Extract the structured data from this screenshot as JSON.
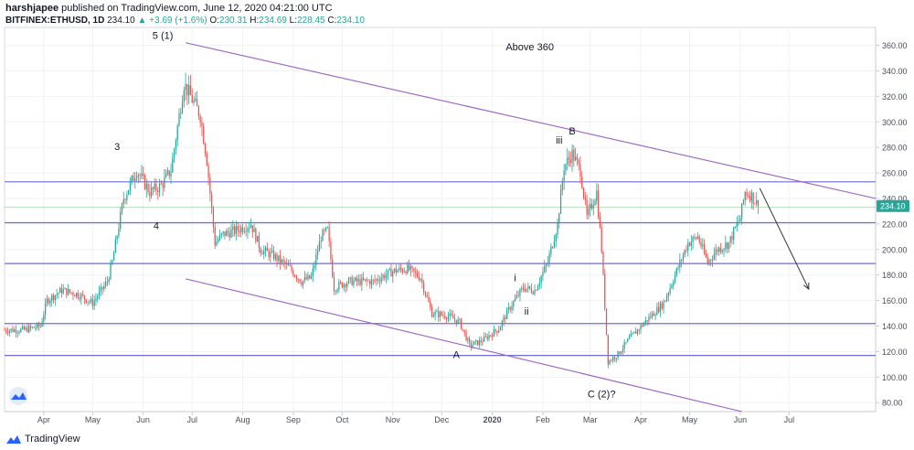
{
  "header": {
    "author": "harshjapee",
    "published_text": "published on TradingView.com, June 12, 2020 04:21:00 UTC",
    "symbol_line": "BITFINEX:ETHUSD, 1D",
    "last": "234.10",
    "change": "▲ +3.69 (+1.6%)",
    "o_label": "O:",
    "o_val": "230.31",
    "h_label": "H:",
    "h_val": "234.69",
    "l_label": "L:",
    "l_val": "228.45",
    "c_label": "C:",
    "c_val": "234.10"
  },
  "footer": {
    "brand": "TradingView"
  },
  "colors": {
    "up": "#26a69a",
    "down": "#ef5350",
    "channel": "#9c5fc1",
    "hline": "#6d6ddb",
    "price_line": "#4caf50",
    "price_badge": "#26a69a"
  },
  "chart_data": {
    "type": "candlestick",
    "x_axis": {
      "labels": [
        "Apr",
        "May",
        "Jun",
        "Jul",
        "Aug",
        "Sep",
        "Oct",
        "Nov",
        "Dec",
        "2020",
        "Feb",
        "Mar",
        "Apr",
        "May",
        "Jun",
        "Jul"
      ],
      "label_dates": [
        "2019-04-01",
        "2019-05-01",
        "2019-06-01",
        "2019-07-01",
        "2019-08-01",
        "2019-09-01",
        "2019-10-01",
        "2019-11-01",
        "2019-12-01",
        "2020-01-01",
        "2020-02-01",
        "2020-03-01",
        "2020-04-01",
        "2020-05-01",
        "2020-06-01",
        "2020-07-01"
      ],
      "range": [
        "2019-03-08",
        "2020-08-23"
      ]
    },
    "y_axis": {
      "ticks": [
        80,
        100,
        120,
        140,
        160,
        180,
        200,
        220,
        240,
        260,
        280,
        300,
        320,
        340,
        360
      ],
      "tick_labels": [
        "80.00",
        "100.00",
        "120.00",
        "140.00",
        "160.00",
        "180.00",
        "200.00",
        "220.00",
        "240.00",
        "260.00",
        "280.00",
        "300.00",
        "320.00",
        "340.00",
        "360.00"
      ],
      "range": [
        73,
        374
      ],
      "position": "right"
    },
    "grid": true,
    "last_price": 234.1,
    "last_price_label": "234.10",
    "price_path": [
      [
        "2019-03-08",
        137
      ],
      [
        "2019-03-20",
        137
      ],
      [
        "2019-03-30",
        140
      ],
      [
        "2019-04-03",
        160
      ],
      [
        "2019-04-12",
        168
      ],
      [
        "2019-04-22",
        165
      ],
      [
        "2019-05-01",
        158
      ],
      [
        "2019-05-10",
        175
      ],
      [
        "2019-05-13",
        190
      ],
      [
        "2019-05-20",
        240
      ],
      [
        "2019-05-28",
        262
      ],
      [
        "2019-06-05",
        245
      ],
      [
        "2019-06-12",
        250
      ],
      [
        "2019-06-18",
        262
      ],
      [
        "2019-06-26",
        330
      ],
      [
        "2019-06-30",
        320
      ],
      [
        "2019-07-06",
        305
      ],
      [
        "2019-07-10",
        270
      ],
      [
        "2019-07-15",
        205
      ],
      [
        "2019-07-20",
        212
      ],
      [
        "2019-07-28",
        215
      ],
      [
        "2019-08-06",
        220
      ],
      [
        "2019-08-12",
        200
      ],
      [
        "2019-08-20",
        195
      ],
      [
        "2019-08-30",
        185
      ],
      [
        "2019-09-06",
        175
      ],
      [
        "2019-09-12",
        178
      ],
      [
        "2019-09-18",
        210
      ],
      [
        "2019-09-22",
        215
      ],
      [
        "2019-09-26",
        170
      ],
      [
        "2019-10-05",
        175
      ],
      [
        "2019-10-20",
        175
      ],
      [
        "2019-11-01",
        183
      ],
      [
        "2019-11-10",
        185
      ],
      [
        "2019-11-18",
        178
      ],
      [
        "2019-11-25",
        150
      ],
      [
        "2019-12-05",
        148
      ],
      [
        "2019-12-12",
        143
      ],
      [
        "2019-12-18",
        125
      ],
      [
        "2019-12-25",
        128
      ],
      [
        "2020-01-05",
        138
      ],
      [
        "2020-01-12",
        155
      ],
      [
        "2020-01-20",
        170
      ],
      [
        "2020-01-27",
        168
      ],
      [
        "2020-02-04",
        190
      ],
      [
        "2020-02-10",
        220
      ],
      [
        "2020-02-14",
        265
      ],
      [
        "2020-02-19",
        275
      ],
      [
        "2020-02-24",
        262
      ],
      [
        "2020-02-28",
        225
      ],
      [
        "2020-03-05",
        245
      ],
      [
        "2020-03-08",
        200
      ],
      [
        "2020-03-12",
        112
      ],
      [
        "2020-03-18",
        118
      ],
      [
        "2020-03-25",
        130
      ],
      [
        "2020-04-05",
        145
      ],
      [
        "2020-04-15",
        158
      ],
      [
        "2020-04-22",
        180
      ],
      [
        "2020-04-30",
        205
      ],
      [
        "2020-05-06",
        210
      ],
      [
        "2020-05-12",
        190
      ],
      [
        "2020-05-18",
        200
      ],
      [
        "2020-05-25",
        205
      ],
      [
        "2020-06-01",
        225
      ],
      [
        "2020-06-04",
        245
      ],
      [
        "2020-06-08",
        242
      ],
      [
        "2020-06-12",
        234
      ]
    ],
    "horizontal_levels": [
      253,
      221,
      189,
      142,
      117
    ],
    "light_levels": [
      233
    ],
    "channel_lines": [
      {
        "from": [
          "2019-06-27",
          362
        ],
        "to": [
          "2020-08-23",
          240
        ]
      },
      {
        "from": [
          "2019-06-27",
          177
        ],
        "to": [
          "2020-06-02",
          73
        ]
      }
    ],
    "arrow": {
      "from": [
        "2020-06-13",
        248
      ],
      "to": [
        "2020-07-13",
        169
      ]
    },
    "annotations": [
      {
        "text": "5 (1)",
        "date": "2019-06-13",
        "price": 365
      },
      {
        "text": "3",
        "date": "2019-05-16",
        "price": 278
      },
      {
        "text": "4",
        "date": "2019-06-09",
        "price": 216
      },
      {
        "text": "Above 360",
        "date": "2020-01-24",
        "price": 356
      },
      {
        "text": "B",
        "date": "2020-02-19",
        "price": 290
      },
      {
        "text": "iii",
        "date": "2020-02-11",
        "price": 283
      },
      {
        "text": "i",
        "date": "2020-01-15",
        "price": 175
      },
      {
        "text": "ii",
        "date": "2020-01-22",
        "price": 149
      },
      {
        "text": "A",
        "date": "2019-12-10",
        "price": 115
      },
      {
        "text": "C (2)?",
        "date": "2020-03-08",
        "price": 84
      }
    ]
  }
}
